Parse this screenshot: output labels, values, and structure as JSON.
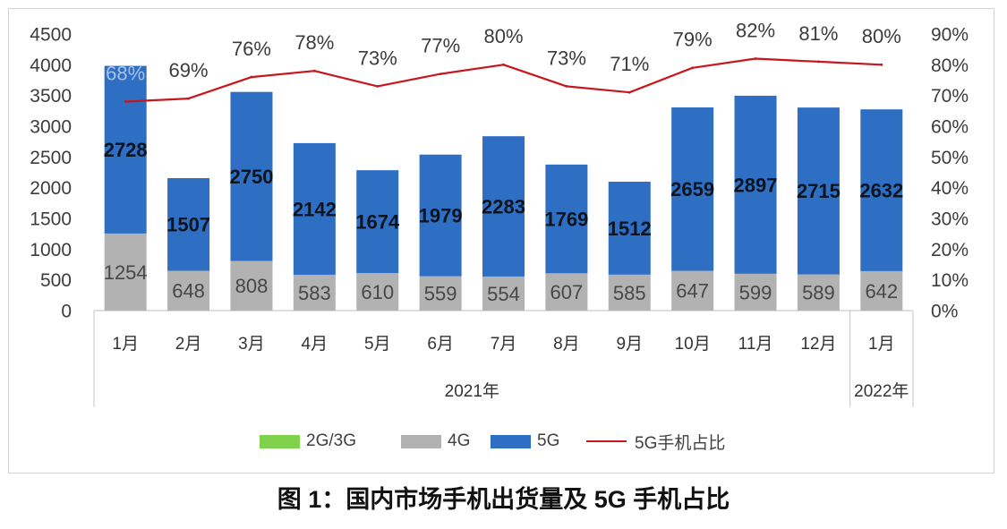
{
  "chart_data": {
    "type": "bar",
    "stacked": true,
    "title": "图 1：国内市场手机出货量及 5G 手机占比",
    "categories": [
      "1月",
      "2月",
      "3月",
      "4月",
      "5月",
      "6月",
      "7月",
      "8月",
      "9月",
      "10月",
      "11月",
      "12月",
      "1月"
    ],
    "category_groups": [
      {
        "label": "2021年",
        "count": 12
      },
      {
        "label": "2022年",
        "count": 1
      }
    ],
    "y_left": {
      "min": 0,
      "max": 4500,
      "ticks": [
        0,
        500,
        1000,
        1500,
        2000,
        2500,
        3000,
        3500,
        4000,
        4500
      ]
    },
    "y_right": {
      "min": 0,
      "max": 90,
      "unit": "%",
      "ticks": [
        0,
        10,
        20,
        30,
        40,
        50,
        60,
        70,
        80,
        90
      ]
    },
    "series": [
      {
        "name": "2G/3G",
        "kind": "bar",
        "color": "#7fd24c"
      },
      {
        "name": "4G",
        "kind": "bar",
        "color": "#b2b2b2",
        "label_color": "#474747",
        "values": [
          1254,
          648,
          808,
          583,
          610,
          559,
          554,
          607,
          585,
          647,
          599,
          589,
          642
        ]
      },
      {
        "name": "5G",
        "kind": "bar",
        "color": "#2f6fc3",
        "label_color": "#0c1420",
        "values": [
          2728,
          1507,
          2750,
          2142,
          1674,
          1979,
          2283,
          1769,
          1512,
          2659,
          2897,
          2715,
          2632
        ]
      },
      {
        "name": "5G手机占比",
        "kind": "line",
        "axis": "right",
        "unit": "%",
        "color": "#c8161d",
        "values": [
          68,
          69,
          76,
          78,
          73,
          77,
          80,
          73,
          71,
          79,
          82,
          81,
          80
        ]
      }
    ],
    "legend_position": "bottom",
    "grid": false
  }
}
